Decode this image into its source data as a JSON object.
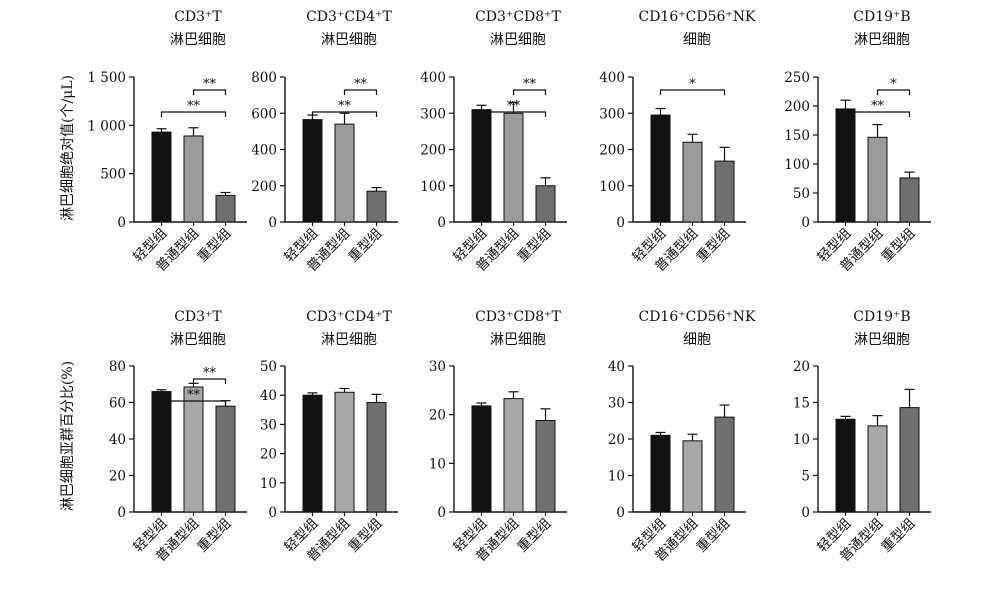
{
  "ylabels": [
    "淋巴细胞绝对值(个/μL)",
    "淋巴细胞亚群百分比(%)"
  ],
  "chart_data": [
    {
      "type": "bar",
      "title": [
        "CD3⁺T",
        "淋巴细胞"
      ],
      "categories": [
        "轻型组",
        "普通型组",
        "重型组"
      ],
      "values": [
        930,
        890,
        275
      ],
      "errors": [
        35,
        85,
        30
      ],
      "ylim": [
        0,
        1500
      ],
      "ticks": [
        0,
        500,
        1000,
        1500
      ],
      "tick_labels": [
        "0",
        "500",
        "1 000",
        "1 500"
      ],
      "sig": [
        {
          "from": 0,
          "to": 2,
          "label": "**"
        },
        {
          "from": 1,
          "to": 2,
          "label": "**"
        }
      ]
    },
    {
      "type": "bar",
      "title": [
        "CD3⁺CD4⁺T",
        "淋巴细胞"
      ],
      "categories": [
        "轻型组",
        "普通型组",
        "重型组"
      ],
      "values": [
        565,
        540,
        170
      ],
      "errors": [
        25,
        60,
        20
      ],
      "ylim": [
        0,
        800
      ],
      "ticks": [
        0,
        200,
        400,
        600,
        800
      ],
      "tick_labels": [
        "0",
        "200",
        "400",
        "600",
        "800"
      ],
      "sig": [
        {
          "from": 0,
          "to": 2,
          "label": "**"
        },
        {
          "from": 1,
          "to": 2,
          "label": "**"
        }
      ]
    },
    {
      "type": "bar",
      "title": [
        "CD3⁺CD8⁺T",
        "淋巴细胞"
      ],
      "categories": [
        "轻型组",
        "普通型组",
        "重型组"
      ],
      "values": [
        310,
        300,
        100
      ],
      "errors": [
        12,
        30,
        22
      ],
      "ylim": [
        0,
        400
      ],
      "ticks": [
        0,
        100,
        200,
        300,
        400
      ],
      "tick_labels": [
        "0",
        "100",
        "200",
        "300",
        "400"
      ],
      "sig": [
        {
          "from": 0,
          "to": 2,
          "label": "**"
        },
        {
          "from": 1,
          "to": 2,
          "label": "**"
        }
      ]
    },
    {
      "type": "bar",
      "title": [
        "CD16⁺CD56⁺NK",
        "细胞"
      ],
      "categories": [
        "轻型组",
        "普通型组",
        "重型组"
      ],
      "values": [
        295,
        220,
        168
      ],
      "errors": [
        18,
        22,
        38
      ],
      "ylim": [
        0,
        400
      ],
      "ticks": [
        0,
        100,
        200,
        300,
        400
      ],
      "tick_labels": [
        "0",
        "100",
        "200",
        "300",
        "400"
      ],
      "sig": [
        {
          "from": 0,
          "to": 2,
          "label": "*"
        }
      ]
    },
    {
      "type": "bar",
      "title": [
        "CD19⁺B",
        "淋巴细胞"
      ],
      "categories": [
        "轻型组",
        "普通型组",
        "重型组"
      ],
      "values": [
        195,
        146,
        76
      ],
      "errors": [
        15,
        22,
        10
      ],
      "ylim": [
        0,
        250
      ],
      "ticks": [
        0,
        50,
        100,
        150,
        200,
        250
      ],
      "tick_labels": [
        "0",
        "50",
        "100",
        "150",
        "200",
        "250"
      ],
      "sig": [
        {
          "from": 0,
          "to": 2,
          "label": "**"
        },
        {
          "from": 1,
          "to": 2,
          "label": "*"
        }
      ]
    },
    {
      "type": "bar",
      "title": [
        "CD3⁺T",
        "淋巴细胞"
      ],
      "categories": [
        "轻型组",
        "普通型组",
        "重型组"
      ],
      "values": [
        66,
        68.5,
        58
      ],
      "errors": [
        1,
        2,
        3
      ],
      "ylim": [
        0,
        80
      ],
      "ticks": [
        0,
        20,
        40,
        60,
        80
      ],
      "tick_labels": [
        "0",
        "20",
        "40",
        "60",
        "80"
      ],
      "sig": [
        {
          "from": 0,
          "to": 2,
          "label": "**"
        },
        {
          "from": 1,
          "to": 2,
          "label": "**"
        }
      ]
    },
    {
      "type": "bar",
      "title": [
        "CD3⁺CD4⁺T",
        "淋巴细胞"
      ],
      "categories": [
        "轻型组",
        "普通型组",
        "重型组"
      ],
      "values": [
        40,
        41,
        37.5
      ],
      "errors": [
        0.8,
        1.3,
        2.8
      ],
      "ylim": [
        0,
        50
      ],
      "ticks": [
        0,
        10,
        20,
        30,
        40,
        50
      ],
      "tick_labels": [
        "0",
        "10",
        "20",
        "30",
        "40",
        "50"
      ],
      "sig": []
    },
    {
      "type": "bar",
      "title": [
        "CD3⁺CD8⁺T",
        "淋巴细胞"
      ],
      "categories": [
        "轻型组",
        "普通型组",
        "重型组"
      ],
      "values": [
        21.8,
        23.3,
        18.8
      ],
      "errors": [
        0.6,
        1.4,
        2.4
      ],
      "ylim": [
        0,
        30
      ],
      "ticks": [
        0,
        10,
        20,
        30
      ],
      "tick_labels": [
        "0",
        "10",
        "20",
        "30"
      ],
      "sig": []
    },
    {
      "type": "bar",
      "title": [
        "CD16⁺CD56⁺NK",
        "细胞"
      ],
      "categories": [
        "轻型组",
        "普通型组",
        "重型组"
      ],
      "values": [
        21,
        19.5,
        26
      ],
      "errors": [
        0.8,
        1.8,
        3.3
      ],
      "ylim": [
        0,
        40
      ],
      "ticks": [
        0,
        10,
        20,
        30,
        40
      ],
      "tick_labels": [
        "0",
        "10",
        "20",
        "30",
        "40"
      ],
      "sig": []
    },
    {
      "type": "bar",
      "title": [
        "CD19⁺B",
        "淋巴细胞"
      ],
      "categories": [
        "轻型组",
        "普通型组",
        "重型组"
      ],
      "values": [
        12.7,
        11.8,
        14.3
      ],
      "errors": [
        0.4,
        1.4,
        2.5
      ],
      "ylim": [
        0,
        20
      ],
      "ticks": [
        0,
        5,
        10,
        15,
        20
      ],
      "tick_labels": [
        "0",
        "5",
        "10",
        "15",
        "20"
      ],
      "sig": []
    }
  ],
  "colors": {
    "top": [
      "#111111",
      "#9b9b9b",
      "#6f6f6f"
    ],
    "bottom": [
      "#111111",
      "#a8a8a8",
      "#707070"
    ]
  }
}
